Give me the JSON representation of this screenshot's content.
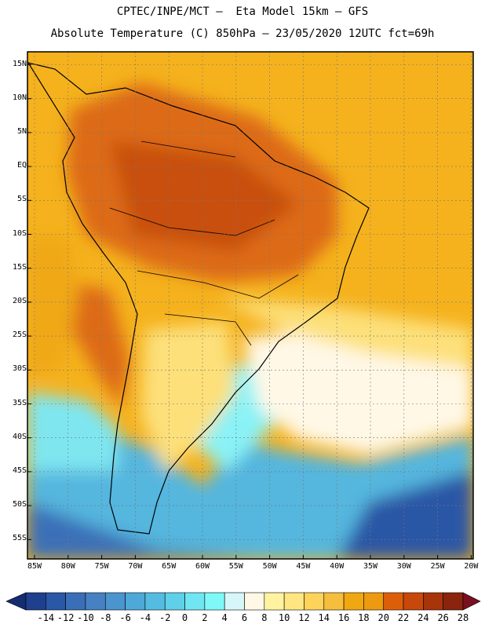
{
  "header": {
    "line1": "CPTEC/INPE/MCT –  Eta Model 15km – GFS",
    "line2": "Absolute Temperature (C) 850hPa – 23/05/2020 12UTC fct=69h"
  },
  "axes": {
    "lat_labels": [
      "15N",
      "10N",
      "5N",
      "EQ",
      "5S",
      "10S",
      "15S",
      "20S",
      "25S",
      "30S",
      "35S",
      "40S",
      "45S",
      "50S",
      "55S"
    ],
    "lon_labels": [
      "85W",
      "80W",
      "75W",
      "70W",
      "65W",
      "60W",
      "55W",
      "50W",
      "45W",
      "40W",
      "35W",
      "30W",
      "25W",
      "20W"
    ]
  },
  "colorbar": {
    "ticks": [
      "-14",
      "-12",
      "-10",
      "-8",
      "-6",
      "-4",
      "-2",
      "0",
      "2",
      "4",
      "6",
      "8",
      "10",
      "12",
      "14",
      "16",
      "18",
      "20",
      "22",
      "24",
      "26",
      "28"
    ],
    "colors": [
      "#1f3f8f",
      "#2a57a6",
      "#3a6fb8",
      "#4682c3",
      "#4b95cf",
      "#4ea8d8",
      "#54bce0",
      "#5fd0e8",
      "#6fe6f2",
      "#7ff8f8",
      "#d6f6fa",
      "#fff8e6",
      "#fff3a0",
      "#ffe680",
      "#fdd35a",
      "#f5be3c",
      "#f0a812",
      "#ee9a10",
      "#dd5e0a",
      "#c8480c",
      "#a8340a",
      "#8a240c"
    ],
    "low_color": "#142c72",
    "high_color": "#7a0f1f"
  }
}
